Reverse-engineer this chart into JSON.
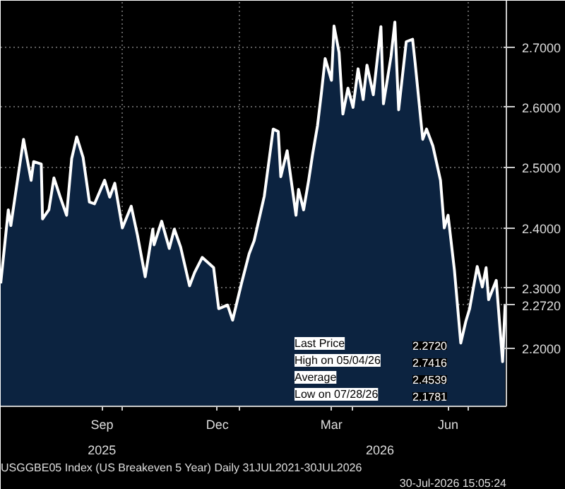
{
  "chart_data": {
    "type": "area",
    "x": [
      "2025-06-27",
      "2025-07-03",
      "2025-07-05",
      "2025-07-15",
      "2025-07-21",
      "2025-07-23",
      "2025-07-29",
      "2025-07-30",
      "2025-08-04",
      "2025-08-08",
      "2025-08-13",
      "2025-08-18",
      "2025-08-22",
      "2025-08-26",
      "2025-08-31",
      "2025-09-05",
      "2025-09-09",
      "2025-09-17",
      "2025-09-21",
      "2025-09-25",
      "2025-10-01",
      "2025-10-08",
      "2025-10-13",
      "2025-10-19",
      "2025-10-25",
      "2025-10-26",
      "2025-11-01",
      "2025-11-07",
      "2025-11-11",
      "2025-11-16",
      "2025-11-23",
      "2025-11-27",
      "2025-12-03",
      "2025-12-12",
      "2025-12-16",
      "2025-12-23",
      "2025-12-27",
      "2026-01-03",
      "2026-01-09",
      "2026-01-13",
      "2026-01-21",
      "2026-01-28",
      "2026-02-01",
      "2026-02-03",
      "2026-02-08",
      "2026-02-15",
      "2026-02-17",
      "2026-02-21",
      "2026-02-25",
      "2026-02-28",
      "2026-03-04",
      "2026-03-07",
      "2026-03-10",
      "2026-03-15",
      "2026-03-17",
      "2026-03-21",
      "2026-03-24",
      "2026-03-28",
      "2026-04-01",
      "2026-04-05",
      "2026-04-09",
      "2026-04-12",
      "2026-04-17",
      "2026-04-23",
      "2026-04-25",
      "2026-05-01",
      "2026-05-04",
      "2026-05-07",
      "2026-05-13",
      "2026-05-18",
      "2026-05-20",
      "2026-05-26",
      "2026-05-29",
      "2026-06-03",
      "2026-06-09",
      "2026-06-12",
      "2026-06-15",
      "2026-06-20",
      "2026-06-25",
      "2026-06-29",
      "2026-07-02",
      "2026-07-08",
      "2026-07-12",
      "2026-07-15",
      "2026-07-17",
      "2026-07-23",
      "2026-07-28",
      "2026-07-30"
    ],
    "series": [
      {
        "color": "#0c2340",
        "values": [
          2.308,
          2.43,
          2.404,
          2.547,
          2.479,
          2.51,
          2.506,
          2.415,
          2.43,
          2.483,
          2.451,
          2.421,
          2.515,
          2.551,
          2.517,
          2.443,
          2.44,
          2.479,
          2.451,
          2.474,
          2.4,
          2.436,
          2.387,
          2.319,
          2.398,
          2.372,
          2.411,
          2.366,
          2.398,
          2.368,
          2.304,
          2.326,
          2.351,
          2.334,
          2.266,
          2.272,
          2.247,
          2.308,
          2.357,
          2.379,
          2.453,
          2.564,
          2.56,
          2.485,
          2.528,
          2.421,
          2.464,
          2.43,
          2.479,
          2.521,
          2.57,
          2.623,
          2.681,
          2.645,
          2.735,
          2.691,
          2.589,
          2.632,
          2.6,
          2.664,
          2.613,
          2.67,
          2.621,
          2.734,
          2.606,
          2.685,
          2.7416,
          2.596,
          2.709,
          2.713,
          2.674,
          2.547,
          2.564,
          2.536,
          2.479,
          2.4,
          2.421,
          2.33,
          2.209,
          2.245,
          2.266,
          2.336,
          2.302,
          2.334,
          2.281,
          2.313,
          2.1781,
          2.272
        ]
      }
    ],
    "xlim": [
      "2025-06-27",
      "2026-07-31"
    ],
    "xticks": [
      {
        "value": "2025-09-15",
        "label": "Sep"
      },
      {
        "value": "2025-10-01",
        "label": null
      },
      {
        "value": "2025-12-15",
        "label": "Dec"
      },
      {
        "value": "2026-01-01",
        "label": null
      },
      {
        "value": "2026-03-15",
        "label": "Mar"
      },
      {
        "value": "2026-04-01",
        "label": null
      },
      {
        "value": "2026-06-15",
        "label": "Jun"
      },
      {
        "value": "2026-07-01",
        "label": null
      }
    ],
    "ylim": [
      2.104,
      2.777
    ],
    "yticks": [
      {
        "value": 2.2,
        "label": "2.2000"
      },
      {
        "value": 2.272,
        "label": "2.2720"
      },
      {
        "value": 2.3,
        "label": "2.3000"
      },
      {
        "value": 2.4,
        "label": "2.4000"
      },
      {
        "value": 2.5,
        "label": "2.5000"
      },
      {
        "value": 2.6,
        "label": "2.6000"
      },
      {
        "value": 2.7,
        "label": "2.7000"
      }
    ],
    "grid": true,
    "annotations": [
      "2025",
      "2026",
      "USGGBE05 Index (US Breakeven 5 Year) Daily 31JUL2021-30JUL2026",
      "30-Jul-2026 15:05:24",
      "Last Price",
      "2.2720",
      "High on 05/04/26",
      "2.7416",
      "Average",
      "2.4539",
      "Low on 07/28/26",
      "2.1781"
    ]
  }
}
